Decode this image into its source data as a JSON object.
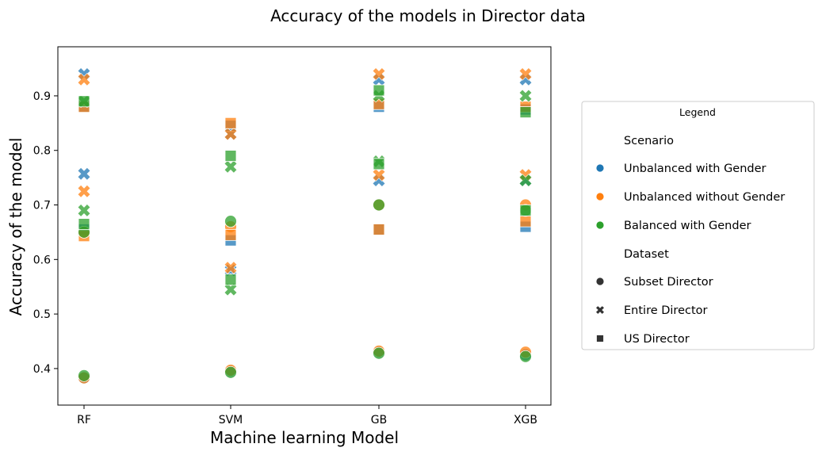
{
  "chart_data": {
    "type": "scatter",
    "title": "Accuracy of the models in Director data",
    "xlabel": "Machine learning Model",
    "ylabel": "Accuracy of the model",
    "categories": [
      "RF",
      "SVM",
      "GB",
      "XGB"
    ],
    "ylim": [
      0.333,
      0.99
    ],
    "yticks": [
      0.4,
      0.5,
      0.6,
      0.7,
      0.8,
      0.9
    ],
    "grid": false,
    "legend": {
      "title": "Legend",
      "placement": "right",
      "scenario_heading": "Scenario",
      "dataset_heading": "Dataset",
      "scenarios": [
        {
          "name": "Unbalanced with Gender",
          "color": "#1f77b4"
        },
        {
          "name": "Unbalanced without Gender",
          "color": "#ff7f0e"
        },
        {
          "name": "Balanced with Gender",
          "color": "#2ca02c"
        }
      ],
      "datasets": [
        {
          "name": "Subset Director",
          "marker": "circle"
        },
        {
          "name": "Entire Director",
          "marker": "x"
        },
        {
          "name": "US Director",
          "marker": "square"
        }
      ]
    },
    "series": [
      {
        "scenario": "Unbalanced with Gender",
        "dataset": "Subset Director",
        "values": [
          0.383,
          0.395,
          0.43,
          0.425
        ]
      },
      {
        "scenario": "Unbalanced with Gender",
        "dataset": "Entire Director",
        "values": [
          0.94,
          0.58,
          0.93,
          0.93
        ]
      },
      {
        "scenario": "Unbalanced with Gender",
        "dataset": "Entire Director",
        "values": [
          0.757,
          0.83,
          0.745,
          0.745
        ]
      },
      {
        "scenario": "Unbalanced with Gender",
        "dataset": "US Director",
        "values": [
          0.88,
          0.845,
          0.88,
          0.875
        ]
      },
      {
        "scenario": "Unbalanced with Gender",
        "dataset": "US Director",
        "values": [
          0.655,
          0.635,
          0.655,
          0.66
        ]
      },
      {
        "scenario": "Unbalanced without Gender",
        "dataset": "Subset Director",
        "values": [
          0.383,
          0.397,
          0.432,
          0.43
        ]
      },
      {
        "scenario": "Unbalanced without Gender",
        "dataset": "Subset Director",
        "values": [
          0.65,
          0.66,
          0.7,
          0.7
        ]
      },
      {
        "scenario": "Unbalanced without Gender",
        "dataset": "Entire Director",
        "values": [
          0.93,
          0.585,
          0.94,
          0.94
        ]
      },
      {
        "scenario": "Unbalanced without Gender",
        "dataset": "Entire Director",
        "values": [
          0.725,
          0.83,
          0.755,
          0.755
        ]
      },
      {
        "scenario": "Unbalanced without Gender",
        "dataset": "US Director",
        "values": [
          0.88,
          0.85,
          0.885,
          0.88
        ]
      },
      {
        "scenario": "Unbalanced without Gender",
        "dataset": "US Director",
        "values": [
          0.643,
          0.645,
          0.655,
          0.67
        ]
      },
      {
        "scenario": "Balanced with Gender",
        "dataset": "Subset Director",
        "values": [
          0.387,
          0.393,
          0.428,
          0.422
        ]
      },
      {
        "scenario": "Balanced with Gender",
        "dataset": "Subset Director",
        "values": [
          0.65,
          0.67,
          0.7,
          0.69
        ]
      },
      {
        "scenario": "Balanced with Gender",
        "dataset": "Entire Director",
        "values": [
          0.89,
          0.77,
          0.9,
          0.9
        ]
      },
      {
        "scenario": "Balanced with Gender",
        "dataset": "Entire Director",
        "values": [
          0.69,
          0.545,
          0.78,
          0.745
        ]
      },
      {
        "scenario": "Balanced with Gender",
        "dataset": "US Director",
        "values": [
          0.89,
          0.79,
          0.91,
          0.87
        ]
      },
      {
        "scenario": "Balanced with Gender",
        "dataset": "US Director",
        "values": [
          0.665,
          0.563,
          0.775,
          0.69
        ]
      }
    ]
  }
}
